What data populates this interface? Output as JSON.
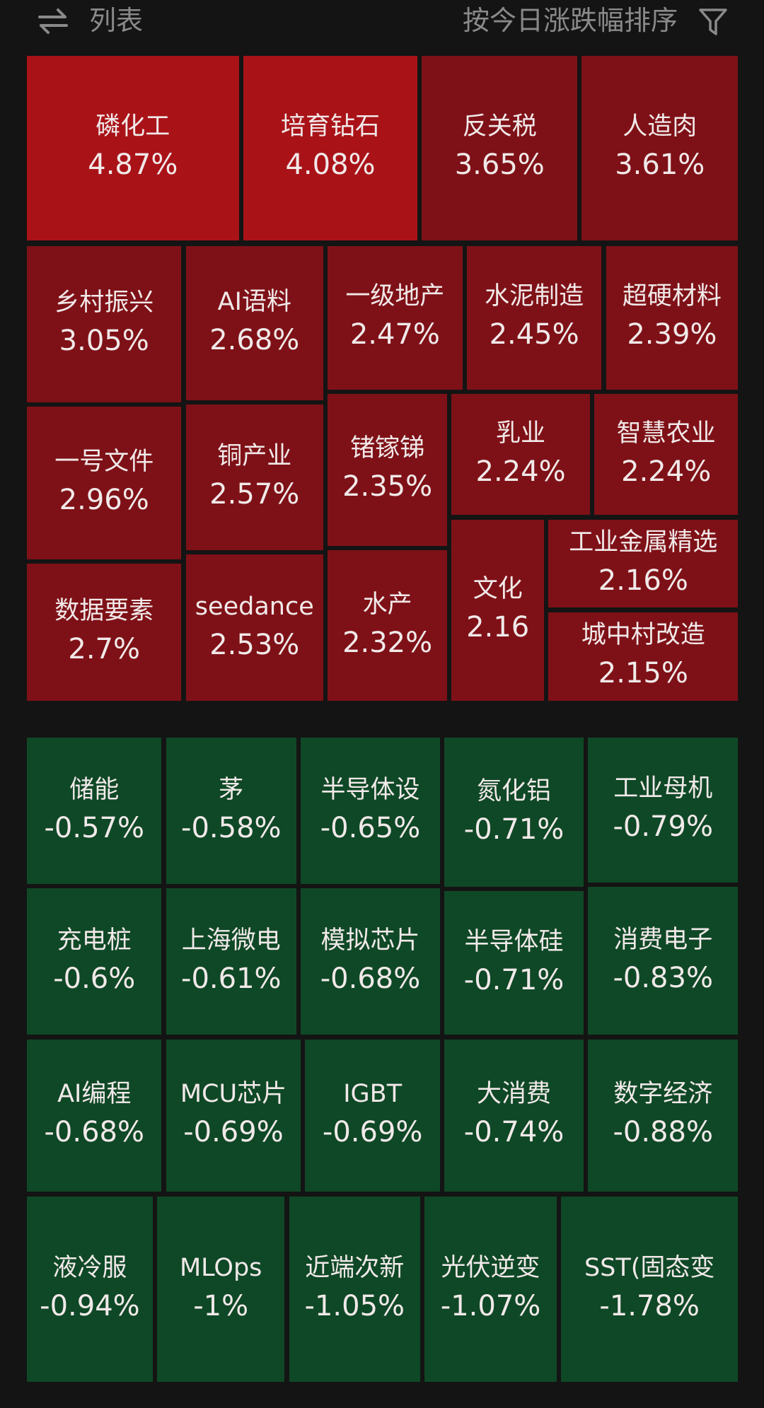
{
  "header": {
    "view_toggle": "列表",
    "sort_label": "按今日涨跌幅排序"
  },
  "gainers": [
    {
      "name": "磷化工",
      "change": "4.87%"
    },
    {
      "name": "培育钻石",
      "change": "4.08%"
    },
    {
      "name": "反关税",
      "change": "3.65%"
    },
    {
      "name": "人造肉",
      "change": "3.61%"
    },
    {
      "name": "乡村振兴",
      "change": "3.05%"
    },
    {
      "name": "AI语料",
      "change": "2.68%"
    },
    {
      "name": "一级地产",
      "change": "2.47%"
    },
    {
      "name": "水泥制造",
      "change": "2.45%"
    },
    {
      "name": "超硬材料",
      "change": "2.39%"
    },
    {
      "name": "一号文件",
      "change": "2.96%"
    },
    {
      "name": "铜产业",
      "change": "2.57%"
    },
    {
      "name": "锗镓锑",
      "change": "2.35%"
    },
    {
      "name": "乳业",
      "change": "2.24%"
    },
    {
      "name": "智慧农业",
      "change": "2.24%"
    },
    {
      "name": "数据要素",
      "change": "2.7%"
    },
    {
      "name": "seedance",
      "change": "2.53%"
    },
    {
      "name": "水产",
      "change": "2.32%"
    },
    {
      "name": "文化",
      "change": "2.16"
    },
    {
      "name": "工业金属精选",
      "change": "2.16%"
    },
    {
      "name": "城中村改造",
      "change": "2.15%"
    }
  ],
  "losers": [
    {
      "name": "储能",
      "change": "-0.57%"
    },
    {
      "name": "茅",
      "change": "-0.58%"
    },
    {
      "name": "半导体设",
      "change": "-0.65%"
    },
    {
      "name": "氮化铝",
      "change": "-0.71%"
    },
    {
      "name": "工业母机",
      "change": "-0.79%"
    },
    {
      "name": "充电桩",
      "change": "-0.6%"
    },
    {
      "name": "上海微电",
      "change": "-0.61%"
    },
    {
      "name": "模拟芯片",
      "change": "-0.68%"
    },
    {
      "name": "半导体硅",
      "change": "-0.71%"
    },
    {
      "name": "消费电子",
      "change": "-0.83%"
    },
    {
      "name": "AI编程",
      "change": "-0.68%"
    },
    {
      "name": "MCU芯片",
      "change": "-0.69%"
    },
    {
      "name": "IGBT",
      "change": "-0.69%"
    },
    {
      "name": "大消费",
      "change": "-0.74%"
    },
    {
      "name": "数字经济",
      "change": "-0.88%"
    },
    {
      "name": "液冷服",
      "change": "-0.94%"
    },
    {
      "name": "MLOps",
      "change": "-1%"
    },
    {
      "name": "近端次新",
      "change": "-1.05%"
    },
    {
      "name": "光伏逆变",
      "change": "-1.07%"
    },
    {
      "name": "SST(固态变",
      "change": "-1.78%"
    }
  ]
}
